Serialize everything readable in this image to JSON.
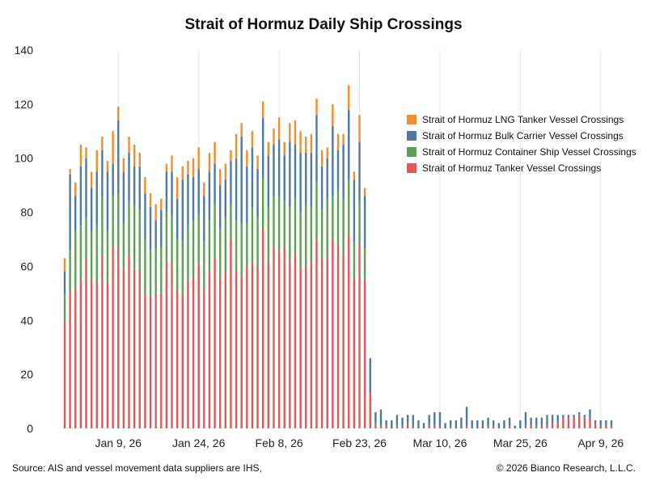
{
  "chart_data": {
    "type": "bar",
    "stacked": true,
    "title": "Strait of Hormuz Daily Ship Crossings",
    "xlabel": "",
    "ylabel": "",
    "ylim": [
      0,
      140
    ],
    "yticks": [
      0,
      20,
      40,
      60,
      80,
      100,
      120,
      140
    ],
    "x_tick_labels": [
      "Jan 9, 26",
      "Jan 24, 26",
      "Feb 8, 26",
      "Feb 23, 26",
      "Mar 10, 26",
      "Mar 25, 26",
      "Apr 9, 26"
    ],
    "x_tick_dates": [
      "2026-01-09",
      "2026-01-24",
      "2026-02-08",
      "2026-02-23",
      "2026-03-10",
      "2026-03-25",
      "2026-04-09"
    ],
    "grid": "vertical",
    "legend_position": "right",
    "dates": [
      "2025-12-30",
      "2025-12-31",
      "2026-01-01",
      "2026-01-02",
      "2026-01-03",
      "2026-01-04",
      "2026-01-05",
      "2026-01-06",
      "2026-01-07",
      "2026-01-08",
      "2026-01-09",
      "2026-01-10",
      "2026-01-11",
      "2026-01-12",
      "2026-01-13",
      "2026-01-14",
      "2026-01-15",
      "2026-01-16",
      "2026-01-17",
      "2026-01-18",
      "2026-01-19",
      "2026-01-20",
      "2026-01-21",
      "2026-01-22",
      "2026-01-23",
      "2026-01-24",
      "2026-01-25",
      "2026-01-26",
      "2026-01-27",
      "2026-01-28",
      "2026-01-29",
      "2026-01-30",
      "2026-01-31",
      "2026-02-01",
      "2026-02-02",
      "2026-02-03",
      "2026-02-04",
      "2026-02-05",
      "2026-02-06",
      "2026-02-07",
      "2026-02-08",
      "2026-02-09",
      "2026-02-10",
      "2026-02-11",
      "2026-02-12",
      "2026-02-13",
      "2026-02-14",
      "2026-02-15",
      "2026-02-16",
      "2026-02-17",
      "2026-02-18",
      "2026-02-19",
      "2026-02-20",
      "2026-02-21",
      "2026-02-22",
      "2026-02-23",
      "2026-02-24",
      "2026-02-25",
      "2026-02-26",
      "2026-02-27",
      "2026-02-28",
      "2026-03-01",
      "2026-03-02",
      "2026-03-03",
      "2026-03-04",
      "2026-03-05",
      "2026-03-06",
      "2026-03-07",
      "2026-03-08",
      "2026-03-09",
      "2026-03-10",
      "2026-03-11",
      "2026-03-12",
      "2026-03-13",
      "2026-03-14",
      "2026-03-15",
      "2026-03-16",
      "2026-03-17",
      "2026-03-18",
      "2026-03-19",
      "2026-03-20",
      "2026-03-21",
      "2026-03-22",
      "2026-03-23",
      "2026-03-24",
      "2026-03-25",
      "2026-03-26",
      "2026-03-27",
      "2026-03-28",
      "2026-03-29",
      "2026-03-30",
      "2026-03-31",
      "2026-04-01",
      "2026-04-02",
      "2026-04-03",
      "2026-04-04",
      "2026-04-05",
      "2026-04-06",
      "2026-04-07",
      "2026-04-08",
      "2026-04-09",
      "2026-04-10",
      "2026-04-11"
    ],
    "series": [
      {
        "name": "Strait of Hormuz Tanker Vessel Crossings",
        "color": "#e15759",
        "values": [
          40,
          51,
          52,
          55,
          63,
          55,
          54,
          64,
          54,
          67,
          67,
          59,
          64,
          59,
          59,
          50,
          49,
          50,
          50,
          62,
          61,
          51,
          50,
          55,
          56,
          61,
          51,
          58,
          63,
          56,
          58,
          70,
          58,
          57,
          60,
          62,
          60,
          74,
          62,
          67,
          66,
          67,
          62,
          65,
          60,
          60,
          62,
          70,
          63,
          63,
          70,
          68,
          65,
          72,
          56,
          68,
          55,
          13,
          1,
          1,
          1,
          0,
          0,
          1,
          2,
          1,
          0,
          0,
          1,
          1,
          1,
          0,
          1,
          0,
          0,
          1,
          0,
          0,
          0,
          1,
          1,
          0,
          0,
          1,
          0,
          0,
          1,
          1,
          0,
          1,
          1,
          2,
          2,
          4,
          4,
          4,
          5,
          4,
          4,
          2,
          1,
          1,
          1
        ]
      },
      {
        "name": "Strait of Hormuz Container Ship Vessel Crossings",
        "color": "#59a14f",
        "values": [
          10,
          15,
          21,
          20,
          15,
          18,
          21,
          22,
          19,
          19,
          20,
          17,
          20,
          24,
          22,
          20,
          17,
          17,
          17,
          18,
          18,
          19,
          19,
          20,
          21,
          18,
          18,
          19,
          20,
          18,
          20,
          13,
          19,
          19,
          16,
          20,
          18,
          19,
          20,
          19,
          20,
          17,
          20,
          20,
          20,
          23,
          20,
          21,
          18,
          22,
          16,
          20,
          20,
          20,
          13,
          16,
          12,
          0,
          1,
          0,
          0,
          0,
          1,
          0,
          0,
          0,
          0,
          0,
          0,
          0,
          0,
          0,
          0,
          0,
          0,
          0,
          0,
          0,
          0,
          0,
          0,
          0,
          0,
          0,
          0,
          0,
          0,
          0,
          1,
          0,
          0,
          0,
          0,
          0,
          0,
          0,
          0,
          0,
          0,
          0,
          0,
          0,
          0
        ]
      },
      {
        "name": "Strait of Hormuz Bulk Carrier Vessel Crossings",
        "color": "#4e79a7",
        "values": [
          8,
          28,
          13,
          22,
          22,
          16,
          20,
          17,
          22,
          12,
          27,
          19,
          18,
          14,
          16,
          17,
          16,
          10,
          14,
          15,
          16,
          15,
          23,
          19,
          16,
          17,
          17,
          18,
          15,
          16,
          14,
          16,
          23,
          32,
          21,
          22,
          18,
          22,
          19,
          19,
          21,
          17,
          24,
          20,
          22,
          19,
          20,
          25,
          16,
          15,
          26,
          15,
          20,
          26,
          23,
          22,
          19,
          13,
          4,
          6,
          2,
          3,
          4,
          3,
          3,
          4,
          3,
          2,
          4,
          5,
          5,
          2,
          2,
          3,
          4,
          7,
          3,
          3,
          3,
          3,
          2,
          2,
          3,
          3,
          1,
          3,
          5,
          3,
          3,
          3,
          4,
          3,
          3,
          1,
          1,
          1,
          1,
          1,
          3,
          1,
          2,
          2,
          2
        ]
      },
      {
        "name": "Strait of Hormuz LNG Tanker Vessel Crossings",
        "color": "#f28e2b",
        "values": [
          5,
          2,
          5,
          8,
          4,
          6,
          8,
          5,
          4,
          12,
          5,
          5,
          6,
          8,
          5,
          6,
          5,
          6,
          4,
          3,
          6,
          8,
          5,
          5,
          7,
          8,
          5,
          7,
          8,
          6,
          6,
          4,
          9,
          5,
          6,
          6,
          5,
          6,
          5,
          6,
          8,
          5,
          7,
          9,
          8,
          6,
          7,
          6,
          6,
          4,
          8,
          6,
          4,
          9,
          3,
          10,
          3,
          0,
          0,
          0,
          0,
          0,
          0,
          0,
          0,
          0,
          0,
          0,
          0,
          0,
          0,
          0,
          0,
          0,
          0,
          0,
          0,
          0,
          0,
          0,
          0,
          0,
          0,
          0,
          0,
          0,
          0,
          0,
          0,
          0,
          0,
          0,
          0,
          0,
          0,
          0,
          0,
          0,
          0,
          0,
          0,
          0,
          0
        ]
      }
    ]
  },
  "legend_items": [
    {
      "label": "Strait of Hormuz LNG Tanker Vessel Crossings",
      "color": "#f28e2b"
    },
    {
      "label": "Strait of Hormuz Bulk Carrier Vessel Crossings",
      "color": "#4e79a7"
    },
    {
      "label": "Strait of Hormuz Container Ship Vessel Crossings",
      "color": "#59a14f"
    },
    {
      "label": "Strait of Hormuz Tanker Vessel Crossings",
      "color": "#e15759"
    }
  ],
  "footer": {
    "source": "Source: AIS and vessel movement data suppliers are IHS,",
    "copyright": "© 2026 Bianco Research, L.L.C."
  }
}
